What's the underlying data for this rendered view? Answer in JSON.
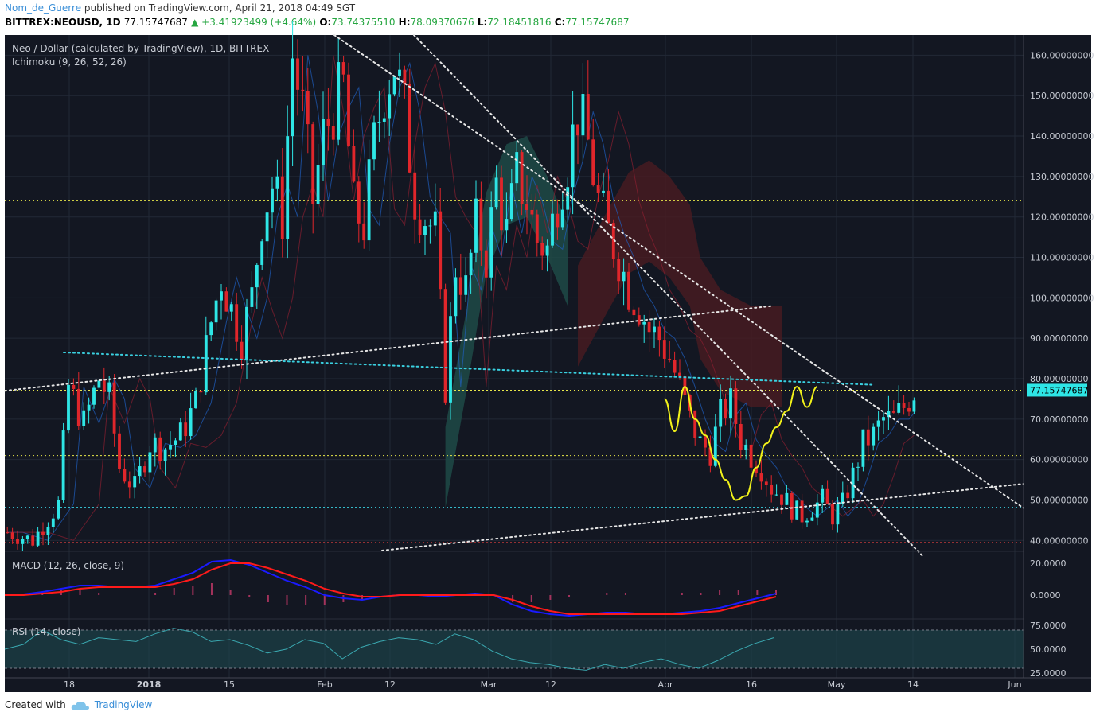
{
  "header": {
    "user": "Nom_de_Guerre",
    "published_text": "published on TradingView.com, April 21, 2018 04:49 SGT",
    "symbol_interval": "BITTREX:NEOUSD, 1D",
    "last": "77.15747687",
    "change": "▲ +3.41923499 (+4.64%)",
    "o_label": "O:",
    "o_value": "73.74375510",
    "h_label": "H:",
    "h_value": "78.09370676",
    "l_label": "L:",
    "l_value": "72.18451816",
    "c_label": "C:",
    "c_value": "77.15747687"
  },
  "legend": {
    "main_title": "Neo / Dollar (calculated by TradingView), 1D, BITTREX",
    "ichimoku": "Ichimoku (9, 26, 52, 26)",
    "macd": "MACD (12, 26, close, 9)",
    "rsi": "RSI (14, close)"
  },
  "footer": {
    "created_with": "Created with",
    "brand": "TradingView"
  },
  "colors": {
    "background": "#131722",
    "up": "#2ee6e6",
    "down": "#e0262b",
    "price_badge": "#2ee6e6",
    "yellow_curve": "#f2f21a",
    "macd_line": "#1a1aff",
    "signal_line": "#ff1a1a",
    "rsi_line": "#3aa8b0",
    "cloud_bull": "#1e4a46",
    "cloud_bear": "#4a1c22"
  },
  "chart_data": [
    {
      "type": "candlestick",
      "title": "Neo / Dollar (calculated by TradingView), 1D, BITTREX",
      "x_tick_labels": [
        "18",
        "2018",
        "15",
        "Feb",
        "12",
        "Mar",
        "12",
        "Apr",
        "16",
        "May",
        "14",
        "Jun"
      ],
      "y_ticks": [
        160,
        150,
        140,
        130,
        120,
        110,
        100,
        90,
        80,
        70,
        60,
        50,
        40
      ],
      "y_tick_labels": [
        "160.00000000",
        "150.00000000",
        "140.00000000",
        "130.00000000",
        "120.00000000",
        "110.00000000",
        "100.00000000",
        "90.00000000",
        "80.00000000",
        "70.00000000",
        "60.00000000",
        "50.00000000",
        "40.00000000"
      ],
      "ylim": [
        37.5,
        165
      ],
      "last_price_label": "77.15747687",
      "last_price": 77.157,
      "horizontal_levels": [
        {
          "value": 124,
          "color": "#e8e84a"
        },
        {
          "value": 77.157,
          "color": "#e8e84a"
        },
        {
          "value": 61,
          "color": "#e8e84a"
        },
        {
          "value": 48.2,
          "color": "#3ad0e0"
        },
        {
          "value": 39.5,
          "color": "#e04040"
        }
      ],
      "close_path": [
        [
          0,
          42
        ],
        [
          5,
          40
        ],
        [
          10,
          49
        ],
        [
          12,
          78
        ],
        [
          15,
          69
        ],
        [
          18,
          80
        ],
        [
          20,
          75
        ],
        [
          22,
          58
        ],
        [
          25,
          53
        ],
        [
          28,
          64
        ],
        [
          31,
          63
        ],
        [
          34,
          66
        ],
        [
          37,
          74
        ],
        [
          40,
          94
        ],
        [
          42,
          105
        ],
        [
          44,
          97
        ],
        [
          46,
          90
        ],
        [
          48,
          100
        ],
        [
          50,
          120
        ],
        [
          52,
          128
        ],
        [
          54,
          120
        ],
        [
          56,
          160
        ],
        [
          58,
          146
        ],
        [
          60,
          124
        ],
        [
          62,
          140
        ],
        [
          64,
          147
        ],
        [
          66,
          152
        ],
        [
          68,
          122
        ],
        [
          70,
          118
        ],
        [
          72,
          138
        ],
        [
          74,
          152
        ],
        [
          76,
          158
        ],
        [
          78,
          146
        ],
        [
          80,
          125
        ],
        [
          82,
          120
        ],
        [
          84,
          116
        ],
        [
          86,
          78
        ],
        [
          88,
          108
        ],
        [
          90,
          102
        ],
        [
          92,
          118
        ],
        [
          94,
          110
        ],
        [
          96,
          128
        ],
        [
          98,
          116
        ],
        [
          100,
          130
        ],
        [
          102,
          124
        ],
        [
          104,
          114
        ],
        [
          106,
          112
        ],
        [
          108,
          125
        ],
        [
          110,
          134
        ],
        [
          112,
          146
        ],
        [
          114,
          138
        ],
        [
          116,
          124
        ],
        [
          118,
          116
        ],
        [
          120,
          110
        ],
        [
          122,
          102
        ],
        [
          124,
          98
        ],
        [
          126,
          92
        ],
        [
          128,
          90
        ],
        [
          130,
          85
        ],
        [
          132,
          78
        ],
        [
          134,
          70
        ],
        [
          136,
          64
        ],
        [
          138,
          62
        ],
        [
          140,
          71
        ],
        [
          142,
          74
        ],
        [
          144,
          65
        ],
        [
          146,
          61
        ],
        [
          148,
          58
        ],
        [
          150,
          53
        ],
        [
          152,
          51
        ],
        [
          154,
          48
        ],
        [
          156,
          46
        ],
        [
          158,
          48
        ],
        [
          160,
          50
        ],
        [
          162,
          46
        ],
        [
          164,
          49
        ],
        [
          166,
          56
        ],
        [
          168,
          64
        ],
        [
          170,
          66
        ],
        [
          172,
          70
        ],
        [
          174,
          70
        ],
        [
          176,
          73
        ],
        [
          178,
          77
        ]
      ],
      "ichimoku_cloud_bull": [
        [
          86,
          68
        ],
        [
          90,
          96
        ],
        [
          94,
          126
        ],
        [
          98,
          138
        ],
        [
          102,
          140
        ],
        [
          106,
          130
        ],
        [
          110,
          118
        ]
      ],
      "ichimoku_cloud_bear": [
        [
          112,
          108
        ],
        [
          118,
          122
        ],
        [
          122,
          131
        ],
        [
          126,
          134
        ],
        [
          130,
          130
        ],
        [
          134,
          123
        ],
        [
          136,
          110
        ],
        [
          140,
          102
        ],
        [
          146,
          98
        ],
        [
          150,
          98
        ],
        [
          152,
          98
        ]
      ],
      "drawn_yellow_curve": [
        [
          129,
          75
        ],
        [
          131,
          67
        ],
        [
          133,
          78
        ],
        [
          135,
          70
        ],
        [
          137,
          66
        ],
        [
          139,
          60
        ],
        [
          141,
          55
        ],
        [
          143,
          50
        ],
        [
          145,
          51
        ],
        [
          147,
          58
        ],
        [
          149,
          64
        ],
        [
          151,
          68
        ],
        [
          153,
          72
        ],
        [
          155,
          78
        ],
        [
          157,
          73
        ],
        [
          159,
          78
        ]
      ]
    },
    {
      "type": "line",
      "title": "MACD (12, 26, close, 9)",
      "y_tick_labels": [
        "20.0000",
        "0.0000"
      ],
      "ylim": [
        -14,
        26
      ],
      "series": [
        {
          "name": "MACD",
          "values": [
            0,
            0.5,
            2,
            4,
            6,
            6,
            5,
            5,
            6,
            10,
            14,
            21,
            22,
            19,
            14,
            9,
            5,
            0,
            -2,
            -3,
            -1,
            0,
            0,
            -1,
            0,
            1,
            0,
            -6,
            -10,
            -12,
            -13,
            -12,
            -11,
            -11,
            -12,
            -12,
            -11,
            -10,
            -8,
            -5,
            -2,
            1
          ]
        },
        {
          "name": "Signal",
          "values": [
            0,
            0,
            1,
            2,
            4,
            5,
            5,
            5,
            5,
            7,
            10,
            16,
            20,
            20,
            17,
            13,
            9,
            4,
            1,
            -1,
            -1,
            0,
            0,
            0,
            0,
            0,
            0,
            -3,
            -7,
            -10,
            -12,
            -12,
            -12,
            -12,
            -12,
            -12,
            -12,
            -11,
            -10,
            -7,
            -4,
            -1
          ]
        }
      ]
    },
    {
      "type": "line",
      "title": "RSI (14, close)",
      "y_tick_labels": [
        "75.0000",
        "50.0000",
        "25.0000"
      ],
      "ylim": [
        20,
        80
      ],
      "series": [
        {
          "name": "RSI",
          "values": [
            50,
            55,
            70,
            60,
            55,
            62,
            60,
            58,
            66,
            72,
            68,
            58,
            60,
            54,
            46,
            50,
            60,
            56,
            40,
            52,
            58,
            62,
            60,
            55,
            66,
            60,
            48,
            40,
            36,
            34,
            30,
            28,
            34,
            30,
            36,
            40,
            34,
            30,
            38,
            48,
            56,
            62
          ]
        }
      ]
    }
  ]
}
